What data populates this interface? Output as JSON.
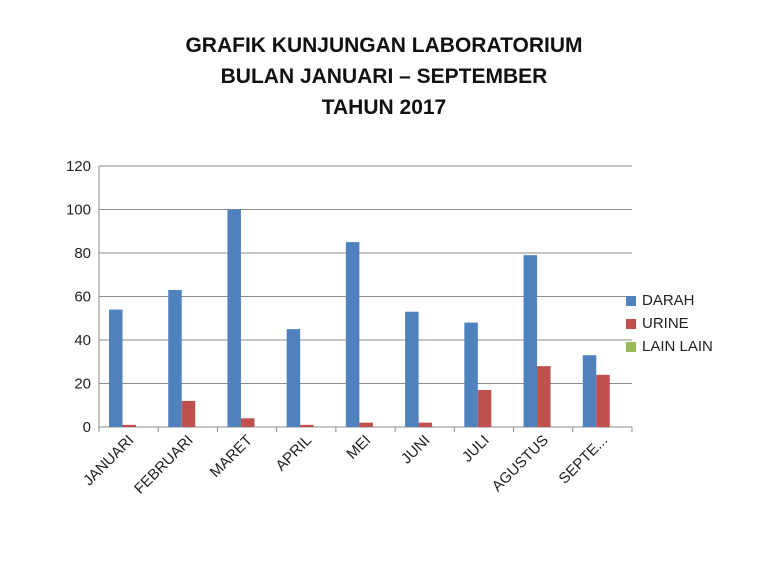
{
  "chart_data": {
    "type": "bar",
    "title": [
      "GRAFIK KUNJUNGAN LABORATORIUM",
      "BULAN JANUARI – SEPTEMBER",
      "TAHUN 2017"
    ],
    "categories": [
      "JANUARI",
      "FEBRUARI",
      "MARET",
      "APRIL",
      "MEI",
      "JUNI",
      "JULI",
      "AGUSTUS",
      "SEPTE..."
    ],
    "series": [
      {
        "name": "DARAH",
        "color": "#4F81BD",
        "values": [
          54,
          63,
          100,
          45,
          85,
          53,
          48,
          79,
          33
        ]
      },
      {
        "name": "URINE",
        "color": "#C0504D",
        "values": [
          1,
          12,
          4,
          1,
          2,
          2,
          17,
          28,
          24
        ]
      },
      {
        "name": "LAIN LAIN",
        "color": "#9BBB59",
        "values": [
          0,
          0,
          0,
          0,
          0,
          0,
          0,
          0,
          0
        ]
      }
    ],
    "ylim": [
      0,
      120
    ],
    "yticks": [
      0,
      20,
      40,
      60,
      80,
      100,
      120
    ],
    "grid": true,
    "legend_position": "right"
  }
}
